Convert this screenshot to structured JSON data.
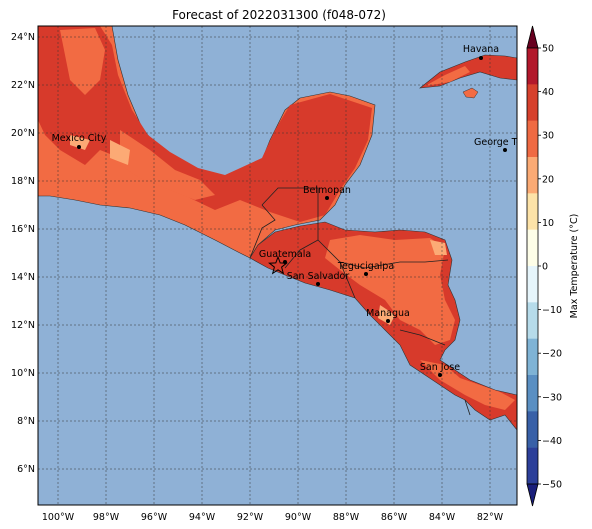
{
  "title": "Forecast of 2022031300 (f048-072)",
  "colorbar": {
    "label": "Max Temperature (°C)",
    "ticks": [
      "50",
      "40",
      "30",
      "20",
      "10",
      "0",
      "−10",
      "−20",
      "−30",
      "−40",
      "−50"
    ],
    "colors": [
      "#67001f",
      "#b2182b",
      "#d6402c",
      "#ef6a43",
      "#fbaa74",
      "#fde3a8",
      "#fefee8",
      "#e6f5fb",
      "#b6dbea",
      "#7fb3d5",
      "#5a8fc2",
      "#3860a7",
      "#2c3f99",
      "#1a1f7a"
    ]
  },
  "x_ticks": [
    "100°W",
    "98°W",
    "96°W",
    "94°W",
    "92°W",
    "90°W",
    "88°W",
    "86°W",
    "84°W",
    "82°W"
  ],
  "y_ticks": [
    "24°N",
    "22°N",
    "20°N",
    "18°N",
    "16°N",
    "14°N",
    "12°N",
    "10°N",
    "8°N",
    "6°N"
  ],
  "cities": [
    {
      "name": "Havana"
    },
    {
      "name": "Mexico City"
    },
    {
      "name": "George Tov"
    },
    {
      "name": "Belmopan"
    },
    {
      "name": "Guatemala"
    },
    {
      "name": "Tegucigalpa"
    },
    {
      "name": "San Salvador"
    },
    {
      "name": "Managua"
    },
    {
      "name": "San Jose"
    }
  ],
  "colors": {
    "ocean": "#8fb1d6",
    "land_hot": "#d73a2b",
    "land_warm": "#f26b43",
    "land_mild": "#fcaa75"
  }
}
